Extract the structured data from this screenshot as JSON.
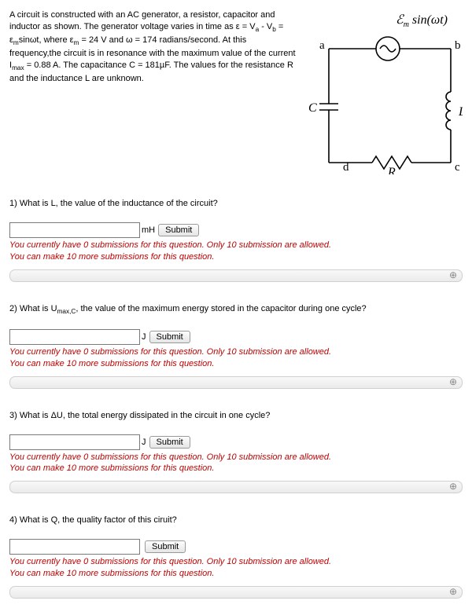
{
  "problem": {
    "text_html": "A circuit is constructed with an AC generator, a resistor, capacitor and inductor as shown. The generator voltage varies in time as ε = V<sub>a</sub> - V<sub>b</sub> = ε<sub>m</sub>sinωt, where ε<sub>m</sub> = 24 V and ω = 174 radians/second. At this frequency,the circuit is in resonance with the maximum value of the current I<sub>max</sub> = 0.88 A. The capacitance C = 181µF. The values for the resistance R and the inductance L are unknown."
  },
  "diagram": {
    "emf_label": "ℰ_m sin(ωt)",
    "node_a": "a",
    "node_b": "b",
    "node_c": "c",
    "node_d": "d",
    "label_C": "C",
    "label_L": "L",
    "label_R": "R",
    "stroke": "#000000",
    "wire_width": 1.6
  },
  "questions": [
    {
      "num": "1)",
      "text": "What is L, the value of the inductance of the circuit?",
      "unit": "mH",
      "submit": "Submit",
      "warn1": "You currently have 0 submissions for this question. Only 10 submission are allowed.",
      "warn2": "You can make 10 more submissions for this question."
    },
    {
      "num": "2)",
      "text_html": "What is U<sub>max,C</sub>, the value of the maximum energy stored in the capacitor during one cycle?",
      "unit": "J",
      "submit": "Submit",
      "warn1": "You currently have 0 submissions for this question. Only 10 submission are allowed.",
      "warn2": "You can make 10 more submissions for this question."
    },
    {
      "num": "3)",
      "text": "What is ΔU, the total energy dissipated in the circuit in one cycle?",
      "unit": "J",
      "submit": "Submit",
      "warn1": "You currently have 0 submissions for this question. Only 10 submission are allowed.",
      "warn2": "You can make 10 more submissions for this question."
    },
    {
      "num": "4)",
      "text": "What is Q, the quality factor of this ciruit?",
      "unit": "",
      "submit": "Submit",
      "warn1": "You currently have 0 submissions for this question. Only 10 submission are allowed.",
      "warn2": "You can make 10 more submissions for this question."
    }
  ],
  "colors": {
    "warning": "#c00000",
    "text": "#000000"
  }
}
